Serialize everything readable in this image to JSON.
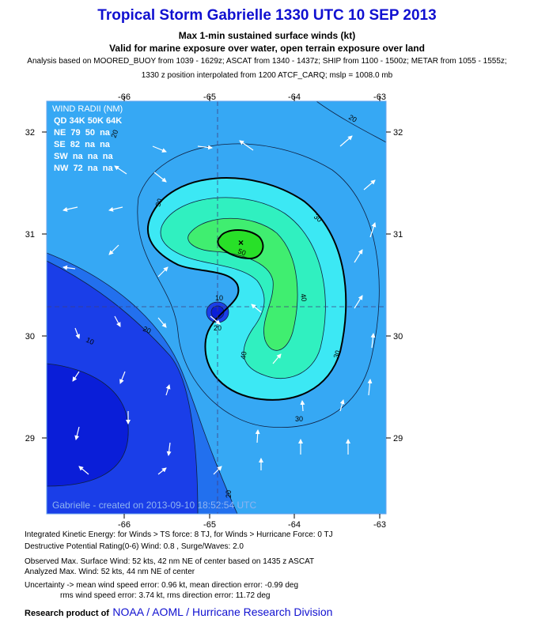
{
  "header": {
    "title": "Tropical Storm Gabrielle 1330 UTC 10 SEP 2013",
    "subtitle1": "Max 1-min sustained surface winds (kt)",
    "subtitle2": "Valid for marine exposure over water, open terrain exposure over land",
    "analysis_line": "Analysis based on MOORED_BUOY from 1039 - 1629z; ASCAT from 1340 - 1437z; SHIP from 1100 - 1500z; METAR from 1055 - 1555z;",
    "position_line": "1330 z position interpolated from 1200 ATCF_CARQ; mslp = 1008.0 mb"
  },
  "map": {
    "x_ticks": [
      "-66",
      "-65",
      "-64",
      "-63"
    ],
    "y_ticks": [
      "32",
      "31",
      "30",
      "29"
    ],
    "contour_labels": [
      "20",
      "20",
      "30",
      "30",
      "30",
      "40",
      "40",
      "50",
      "30",
      "20",
      "10",
      "20",
      "10",
      "20"
    ],
    "credit": "Gabrielle - created on 2013-09-10 18:52:54 UTC",
    "center_marker": "×",
    "colors": {
      "deep": "#0a1ed8",
      "dark": "#1a3ee8",
      "mid": "#2270ee",
      "light_blue": "#36a8f4",
      "cyan": "#3ce8f4",
      "aqua": "#30f0c0",
      "green": "#40ee70",
      "max": "#28e028",
      "frame": "#6aa4ec"
    }
  },
  "wind_radii": {
    "title": "WIND RADII (NM)",
    "header": "QD 34K 50K 64K",
    "rows": [
      "NE  79  50  na",
      "SE  82  na  na",
      "SW  na  na  na",
      "NW  72  na  na"
    ]
  },
  "footer": {
    "ike": "Integrated Kinetic Energy: for Winds > TS force: 8 TJ, for Winds > Hurricane Force: 0 TJ",
    "dpr": "Destructive Potential Rating(0-6)  Wind: 0.8 , Surge/Waves: 2.0",
    "observed": "Observed Max. Surface Wind: 52 kts, 42 nm NE of center based on 1435 z ASCAT",
    "analyzed": "Analyzed Max. Wind: 52 kts, 44 nm  NE of center",
    "uncert1": "Uncertainty -> mean wind speed error: 0.96 kt, mean direction error:  -0.99 deg",
    "uncert2": "rms wind speed error: 3.74 kt, rms direction error: 11.72 deg",
    "research_label": "Research product of",
    "research_org": "NOAA / AOML / Hurricane Research Division"
  }
}
